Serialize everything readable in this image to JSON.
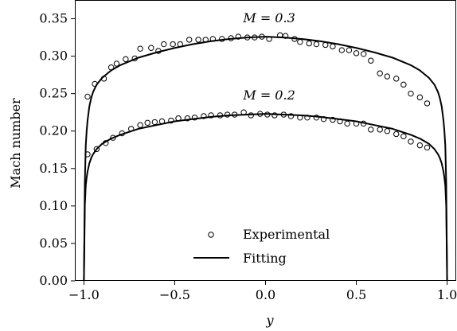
{
  "chart_data": {
    "type": "line",
    "xlabel": "y",
    "ylabel": "Mach number",
    "xlim": [
      -1.05,
      1.05
    ],
    "ylim": [
      0.0,
      0.375
    ],
    "xticks": [
      -1.0,
      -0.5,
      0.0,
      0.5,
      1.0
    ],
    "xtick_labels": [
      "−1.0",
      "−0.5",
      "0.0",
      "0.5",
      "1.0"
    ],
    "yticks": [
      0.0,
      0.05,
      0.1,
      0.15,
      0.2,
      0.25,
      0.3,
      0.35
    ],
    "ytick_labels": [
      "0.00",
      "0.05",
      "0.10",
      "0.15",
      "0.20",
      "0.25",
      "0.30",
      "0.35"
    ],
    "grid": false,
    "legend": {
      "placement": "lower-center",
      "entries": [
        {
          "label": "Experimental",
          "marker": "open-circle"
        },
        {
          "label": "Fitting",
          "marker": "line"
        }
      ]
    },
    "annotations": [
      {
        "text": "M = 0.3",
        "x": 0.02,
        "y": 0.345
      },
      {
        "text": "M = 0.2",
        "x": 0.02,
        "y": 0.242
      }
    ],
    "series": [
      {
        "legend": "Experimental",
        "case": "M = 0.3",
        "style": "open-circle",
        "x": [
          -0.98,
          -0.94,
          -0.89,
          -0.85,
          -0.82,
          -0.77,
          -0.72,
          -0.69,
          -0.63,
          -0.59,
          -0.56,
          -0.51,
          -0.47,
          -0.42,
          -0.37,
          -0.33,
          -0.29,
          -0.24,
          -0.19,
          -0.15,
          -0.1,
          -0.06,
          -0.02,
          0.02,
          0.08,
          0.11,
          0.16,
          0.19,
          0.24,
          0.28,
          0.33,
          0.37,
          0.42,
          0.46,
          0.5,
          0.54,
          0.58,
          0.63,
          0.67,
          0.72,
          0.76,
          0.8,
          0.85,
          0.89
        ],
        "y": [
          0.246,
          0.263,
          0.27,
          0.285,
          0.29,
          0.296,
          0.297,
          0.31,
          0.311,
          0.307,
          0.316,
          0.316,
          0.316,
          0.322,
          0.322,
          0.322,
          0.323,
          0.323,
          0.324,
          0.326,
          0.325,
          0.325,
          0.326,
          0.323,
          0.328,
          0.327,
          0.323,
          0.319,
          0.317,
          0.316,
          0.315,
          0.313,
          0.308,
          0.308,
          0.304,
          0.303,
          0.294,
          0.277,
          0.273,
          0.27,
          0.262,
          0.25,
          0.245,
          0.237
        ]
      },
      {
        "legend": "Experimental",
        "case": "M = 0.2",
        "style": "open-circle",
        "x": [
          -0.98,
          -0.93,
          -0.88,
          -0.84,
          -0.79,
          -0.74,
          -0.69,
          -0.65,
          -0.61,
          -0.57,
          -0.52,
          -0.48,
          -0.43,
          -0.39,
          -0.34,
          -0.3,
          -0.25,
          -0.21,
          -0.17,
          -0.12,
          -0.08,
          -0.03,
          0.01,
          0.05,
          0.1,
          0.14,
          0.19,
          0.23,
          0.28,
          0.32,
          0.37,
          0.41,
          0.45,
          0.5,
          0.54,
          0.58,
          0.63,
          0.67,
          0.72,
          0.76,
          0.8,
          0.85,
          0.89
        ],
        "y": [
          0.169,
          0.176,
          0.184,
          0.191,
          0.197,
          0.203,
          0.208,
          0.211,
          0.212,
          0.213,
          0.214,
          0.217,
          0.217,
          0.218,
          0.22,
          0.221,
          0.221,
          0.222,
          0.222,
          0.225,
          0.221,
          0.223,
          0.222,
          0.221,
          0.222,
          0.22,
          0.218,
          0.218,
          0.218,
          0.216,
          0.215,
          0.213,
          0.21,
          0.21,
          0.21,
          0.202,
          0.202,
          0.2,
          0.196,
          0.193,
          0.186,
          0.181,
          0.178
        ]
      },
      {
        "legend": "Fitting",
        "case": "M = 0.3",
        "style": "line",
        "x": [
          -1.0,
          -0.998,
          -0.995,
          -0.99,
          -0.985,
          -0.98,
          -0.97,
          -0.96,
          -0.95,
          -0.93,
          -0.9,
          -0.85,
          -0.8,
          -0.7,
          -0.6,
          -0.5,
          -0.4,
          -0.3,
          -0.2,
          -0.1,
          0.0,
          0.1,
          0.2,
          0.3,
          0.4,
          0.5,
          0.6,
          0.7,
          0.8,
          0.85,
          0.9,
          0.93,
          0.95,
          0.96,
          0.97,
          0.98,
          0.985,
          0.99,
          0.995,
          0.998,
          1.0
        ],
        "y": [
          0.0,
          0.05,
          0.13,
          0.18,
          0.2,
          0.214,
          0.233,
          0.244,
          0.252,
          0.262,
          0.271,
          0.281,
          0.288,
          0.298,
          0.305,
          0.311,
          0.316,
          0.32,
          0.323,
          0.325,
          0.326,
          0.325,
          0.323,
          0.32,
          0.316,
          0.311,
          0.305,
          0.298,
          0.288,
          0.281,
          0.271,
          0.262,
          0.252,
          0.244,
          0.233,
          0.214,
          0.2,
          0.18,
          0.13,
          0.05,
          0.0
        ]
      },
      {
        "legend": "Fitting",
        "case": "M = 0.2",
        "style": "line",
        "x": [
          -1.0,
          -0.998,
          -0.995,
          -0.99,
          -0.985,
          -0.98,
          -0.97,
          -0.96,
          -0.95,
          -0.93,
          -0.9,
          -0.85,
          -0.8,
          -0.7,
          -0.6,
          -0.5,
          -0.4,
          -0.3,
          -0.2,
          -0.1,
          0.0,
          0.1,
          0.2,
          0.3,
          0.4,
          0.5,
          0.6,
          0.7,
          0.8,
          0.85,
          0.9,
          0.93,
          0.95,
          0.96,
          0.97,
          0.98,
          0.985,
          0.99,
          0.995,
          0.998,
          1.0
        ],
        "y": [
          0.0,
          0.04,
          0.1,
          0.127,
          0.138,
          0.146,
          0.157,
          0.164,
          0.169,
          0.176,
          0.183,
          0.19,
          0.195,
          0.203,
          0.208,
          0.213,
          0.216,
          0.219,
          0.221,
          0.222,
          0.223,
          0.222,
          0.221,
          0.219,
          0.216,
          0.213,
          0.208,
          0.203,
          0.195,
          0.19,
          0.183,
          0.176,
          0.169,
          0.164,
          0.157,
          0.146,
          0.138,
          0.127,
          0.1,
          0.04,
          0.0
        ]
      }
    ]
  }
}
